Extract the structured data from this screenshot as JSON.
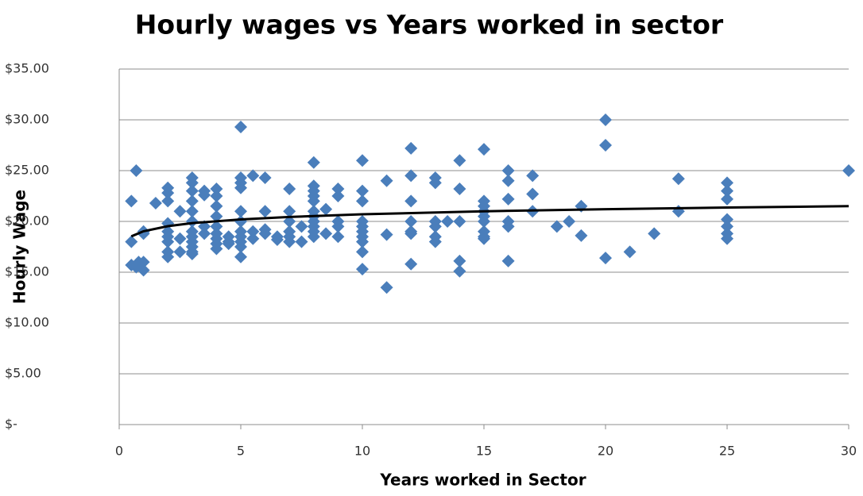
{
  "chart_data": {
    "type": "scatter",
    "title": "Hourly wages vs Years worked in sector",
    "xlabel": "Years worked in Sector",
    "ylabel": "Hourly Wage",
    "xlim": [
      0,
      30
    ],
    "xticks": [
      0,
      5,
      10,
      15,
      20,
      25,
      30
    ],
    "ylim": [
      0,
      35
    ],
    "yticks": [
      {
        "value": 0,
        "label": "$-"
      },
      {
        "value": 5,
        "label": "$5.00"
      },
      {
        "value": 10,
        "label": "$10.00"
      },
      {
        "value": 15,
        "label": "$15.00"
      },
      {
        "value": 20,
        "label": "$20.00"
      },
      {
        "value": 25,
        "label": "$25.00"
      },
      {
        "value": 30,
        "label": "$30.00"
      },
      {
        "value": 35,
        "label": "$35.00"
      }
    ],
    "grid": true,
    "series": [
      {
        "color": "#4a7ebb",
        "x": [
          0.5,
          0.5,
          0.5,
          0.7,
          0.7,
          0.8,
          1,
          1,
          1,
          1,
          1.5,
          2,
          2,
          2,
          2,
          2,
          2,
          2,
          2,
          2,
          2.5,
          2.5,
          2.5,
          3,
          3,
          3,
          3,
          3,
          3,
          3,
          3,
          3,
          3,
          3,
          3,
          3.5,
          3.5,
          3.5,
          3.5,
          4,
          4,
          4,
          4,
          4,
          4,
          4,
          4,
          4,
          4.5,
          4.5,
          4.5,
          5,
          5,
          5,
          5,
          5,
          5,
          5,
          5,
          5,
          5,
          5,
          5.5,
          5.5,
          5.5,
          6,
          6,
          6,
          6,
          6.5,
          6.5,
          7,
          7,
          7,
          7,
          7,
          7,
          7.5,
          7.5,
          8,
          8,
          8,
          8,
          8,
          8,
          8,
          8,
          8,
          8,
          8,
          8.5,
          8.5,
          9,
          9,
          9,
          9,
          9,
          10,
          10,
          10,
          10,
          10,
          10,
          10,
          10,
          10,
          10,
          11,
          11,
          11,
          12,
          12,
          12,
          12,
          12,
          12,
          12,
          13,
          13,
          13,
          13,
          13,
          13,
          13.5,
          14,
          14,
          14,
          14,
          14,
          15,
          15,
          15,
          15,
          15,
          15,
          15,
          15,
          15,
          16,
          16,
          16,
          16,
          16,
          16,
          17,
          17,
          17,
          18,
          18.5,
          19,
          19,
          20,
          20,
          20,
          21,
          22,
          23,
          23,
          25,
          25,
          25,
          25,
          25,
          25,
          25,
          30
        ],
        "values": [
          22,
          18,
          15.7,
          25,
          15.5,
          16,
          19,
          16,
          15.2,
          18.8,
          21.8,
          23.3,
          22.8,
          22,
          19.8,
          19,
          18.5,
          18,
          17,
          16.5,
          21,
          18.3,
          17,
          24.3,
          23.8,
          23,
          22,
          21,
          20,
          19,
          18.5,
          18,
          17.5,
          17,
          16.8,
          23,
          22.6,
          19.5,
          18.8,
          23.2,
          22.5,
          21.5,
          20.5,
          19.5,
          18.8,
          18.3,
          17.8,
          17.3,
          18.5,
          18,
          17.8,
          29.3,
          24.3,
          23.8,
          23.3,
          21,
          20,
          19,
          18.5,
          18,
          17.5,
          16.5,
          24.5,
          19,
          18.3,
          24.3,
          21,
          19.2,
          18.8,
          18.5,
          18.2,
          23.2,
          21,
          20,
          19,
          18.5,
          18,
          19.5,
          18,
          25.8,
          23.5,
          23,
          22.5,
          22,
          21,
          20.5,
          20,
          19.5,
          19,
          18.5,
          21.2,
          18.8,
          23.2,
          22.5,
          20,
          19.5,
          18.5,
          26,
          23,
          22,
          20,
          19.5,
          19,
          18.5,
          18,
          17,
          15.3,
          24,
          18.7,
          13.5,
          27.2,
          24.5,
          22,
          20,
          19,
          18.8,
          15.8,
          24.3,
          23.8,
          20,
          19.5,
          18.5,
          18,
          20,
          26,
          23.2,
          20,
          16.1,
          15.1,
          27.1,
          22,
          21.5,
          21,
          20.5,
          20,
          19,
          18.5,
          18.3,
          25,
          24,
          22.2,
          20,
          19.5,
          16.1,
          24.5,
          22.7,
          21,
          19.5,
          20,
          21.5,
          18.6,
          30,
          27.5,
          16.4,
          17,
          18.8,
          24.2,
          21,
          23.8,
          23,
          22.2,
          20.2,
          19.5,
          18.8,
          18.3,
          25
        ]
      }
    ],
    "trendline": {
      "color": "#000000",
      "x": [
        0.5,
        1,
        2,
        3,
        5,
        7,
        10,
        15,
        20,
        25,
        30
      ],
      "values": [
        18.53,
        19.03,
        19.53,
        19.83,
        20.2,
        20.44,
        20.7,
        21.0,
        21.2,
        21.37,
        21.5
      ]
    }
  }
}
